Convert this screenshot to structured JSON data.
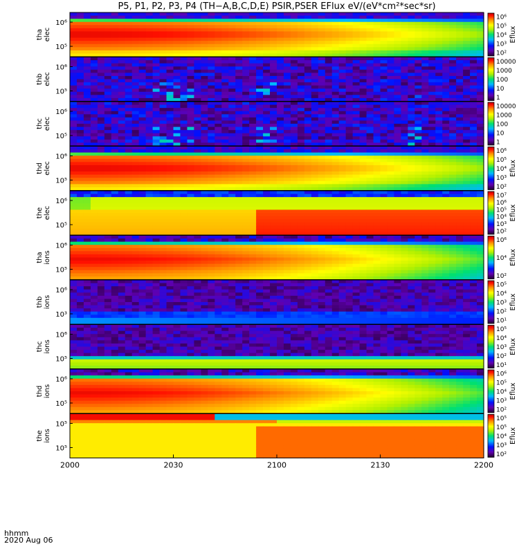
{
  "title": "P5, P1, P2, P3, P4 (TH−A,B,C,D,E) PSIR,PSER EFlux eV/(eV*cm²*sec*sr)",
  "footer": {
    "time_unit": "hhmm",
    "date": "2020 Aug 06"
  },
  "chart_data": {
    "type": "heatmap",
    "title": "P5, P1, P2, P3, P4 (TH−A,B,C,D,E) PSIR,PSER EFlux eV/(eV*cm²*sec*sr)",
    "xlabel": "hhmm",
    "x_ticks": [
      "2000",
      "2030",
      "2100",
      "2130",
      "2200"
    ],
    "x_range": [
      "2000",
      "2200"
    ],
    "colorbar_label": "Eflux",
    "panels": [
      {
        "label": [
          "tha",
          "elec"
        ],
        "y_ticks": [
          "10⁶",
          "10⁵"
        ],
        "cbar_ticks": [
          "10⁶",
          "10⁵",
          "10⁴",
          "10³",
          "10²"
        ],
        "cbar_label": "Eflux",
        "kind": "intense"
      },
      {
        "label": [
          "thb",
          "elec"
        ],
        "y_ticks": [
          "10⁶",
          "10⁵"
        ],
        "cbar_ticks": [
          "10000",
          "1000",
          "100",
          "10",
          "1"
        ],
        "cbar_label": "",
        "kind": "noise"
      },
      {
        "label": [
          "thc",
          "elec"
        ],
        "y_ticks": [
          "10⁶",
          "10⁵"
        ],
        "cbar_ticks": [
          "10000",
          "1000",
          "100",
          "10",
          "1"
        ],
        "cbar_label": "",
        "kind": "noise"
      },
      {
        "label": [
          "thd",
          "elec"
        ],
        "y_ticks": [
          "10⁶",
          "10⁵"
        ],
        "cbar_ticks": [
          "10⁶",
          "10⁵",
          "10⁴",
          "10³",
          "10²"
        ],
        "cbar_label": "Eflux",
        "kind": "intense"
      },
      {
        "label": [
          "the",
          "elec"
        ],
        "y_ticks": [
          "10⁶",
          "10⁵"
        ],
        "cbar_ticks": [
          "10⁷",
          "10⁶",
          "10⁵",
          "10⁴",
          "10³",
          "10²"
        ],
        "cbar_label": "Eflux",
        "kind": "moderate"
      },
      {
        "label": [
          "tha",
          "ions"
        ],
        "y_ticks": [
          "10⁶",
          "10⁵"
        ],
        "cbar_ticks": [
          "10⁶",
          "10⁴",
          "10²"
        ],
        "cbar_label": "Eflux",
        "kind": "intense_ion"
      },
      {
        "label": [
          "thb",
          "ions"
        ],
        "y_ticks": [
          "10⁶",
          "10³"
        ],
        "cbar_ticks": [
          "10⁵",
          "10⁴",
          "10³",
          "10²",
          "10¹"
        ],
        "cbar_label": "Eflux",
        "kind": "ion_noise"
      },
      {
        "label": [
          "thc",
          "ions"
        ],
        "y_ticks": [
          "10⁶",
          "10⁵"
        ],
        "cbar_ticks": [
          "10⁵",
          "10⁴",
          "10³",
          "10²",
          "10¹"
        ],
        "cbar_label": "Eflux",
        "kind": "ion_band"
      },
      {
        "label": [
          "thd",
          "ions"
        ],
        "y_ticks": [
          "10⁶",
          "10⁵"
        ],
        "cbar_ticks": [
          "10⁶",
          "10⁵",
          "10⁴",
          "10³",
          "10²"
        ],
        "cbar_label": "Eflux",
        "kind": "intense_ion"
      },
      {
        "label": [
          "the",
          "ions"
        ],
        "y_ticks": [
          "10⁵",
          "10⁵"
        ],
        "cbar_ticks": [
          "10⁵",
          "10⁵",
          "10⁴",
          "10³",
          "10²"
        ],
        "cbar_label": "Eflux",
        "kind": "moderate_ion"
      }
    ]
  }
}
